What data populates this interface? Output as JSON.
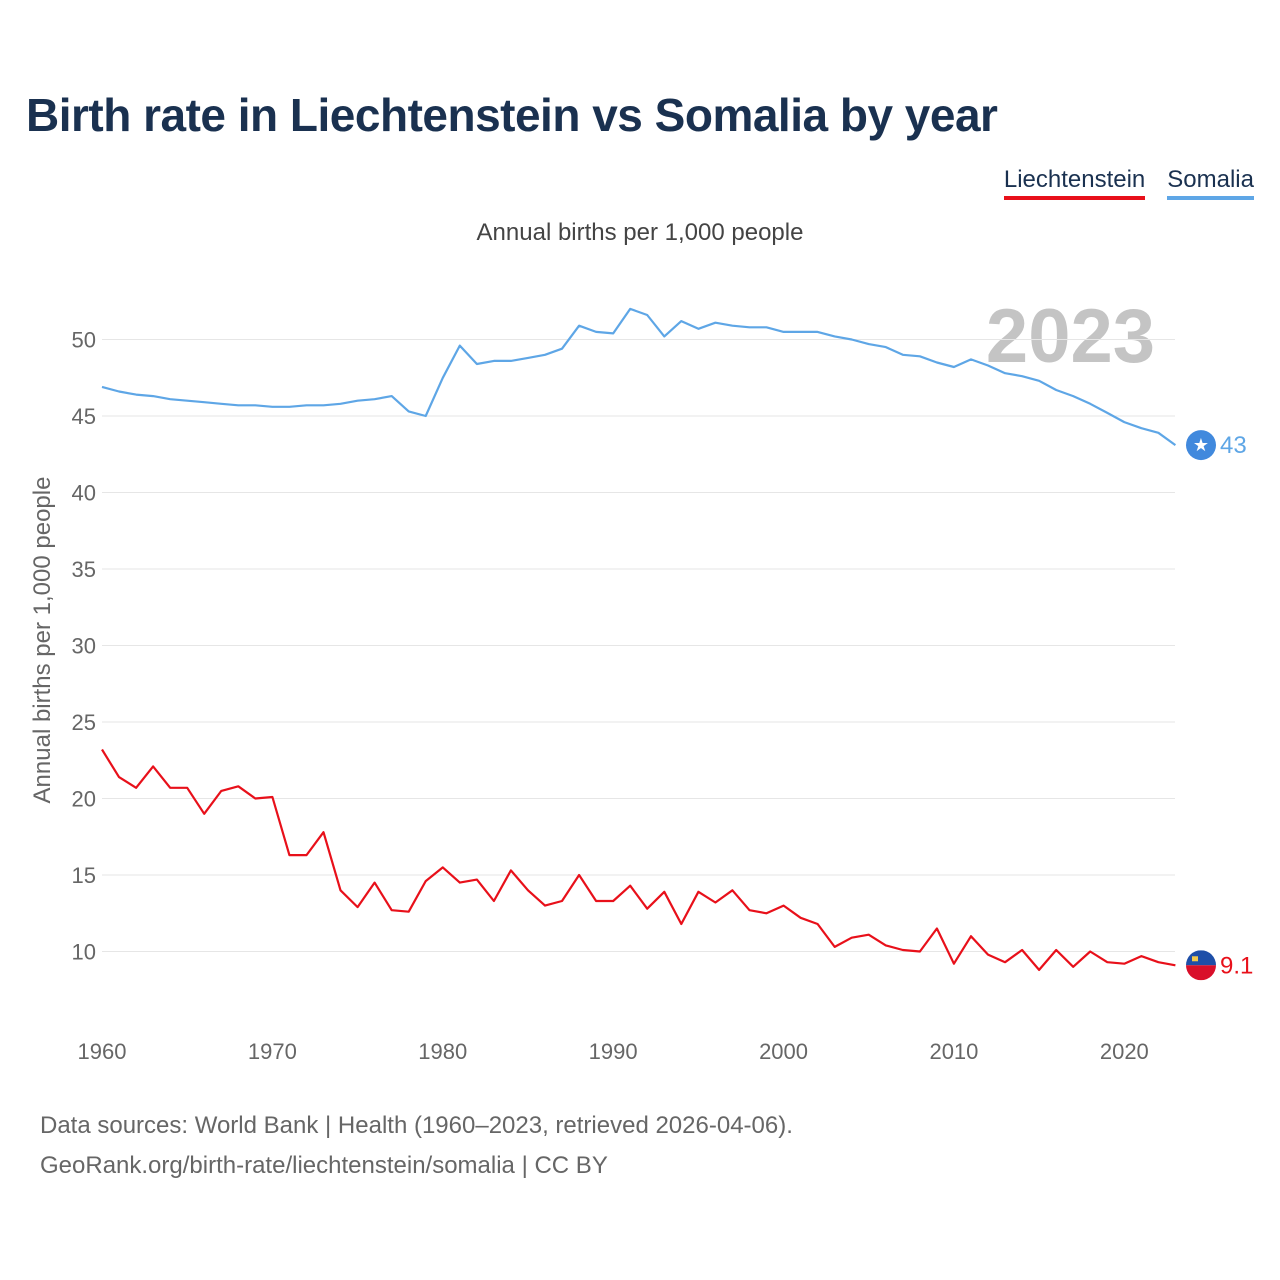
{
  "title": "Birth rate in Liechtenstein vs Somalia by year",
  "legend": {
    "liechtenstein": "Liechtenstein",
    "somalia": "Somalia"
  },
  "colors": {
    "liechtenstein": "#e8101a",
    "somalia": "#5ea6e6",
    "title": "#1a3150"
  },
  "footer": {
    "line1": "Data sources: World Bank | Health (1960–2023, retrieved 2026-04-06).",
    "line2": "GeoRank.org/birth-rate/liechtenstein/somalia | CC BY"
  },
  "chart_data": {
    "type": "line",
    "title": "Birth rate in Liechtenstein vs Somalia by year",
    "subtitle": "Annual births per 1,000 people",
    "ylabel": "Annual births per 1,000 people",
    "xlabel": "",
    "watermark_year": "2023",
    "xlim": [
      1960,
      2024.5
    ],
    "ylim": [
      5,
      55
    ],
    "x_ticks": [
      1960,
      1970,
      1980,
      1990,
      2000,
      2010,
      2020
    ],
    "y_ticks": [
      10,
      15,
      20,
      25,
      30,
      35,
      40,
      45,
      50
    ],
    "grid": true,
    "x": [
      1960,
      1961,
      1962,
      1963,
      1964,
      1965,
      1966,
      1967,
      1968,
      1969,
      1970,
      1971,
      1972,
      1973,
      1974,
      1975,
      1976,
      1977,
      1978,
      1979,
      1980,
      1981,
      1982,
      1983,
      1984,
      1985,
      1986,
      1987,
      1988,
      1989,
      1990,
      1991,
      1992,
      1993,
      1994,
      1995,
      1996,
      1997,
      1998,
      1999,
      2000,
      2001,
      2002,
      2003,
      2004,
      2005,
      2006,
      2007,
      2008,
      2009,
      2010,
      2011,
      2012,
      2013,
      2014,
      2015,
      2016,
      2017,
      2018,
      2019,
      2020,
      2021,
      2022,
      2023
    ],
    "series": [
      {
        "name": "Liechtenstein",
        "end_label": "9.1",
        "values": [
          23.2,
          21.4,
          20.7,
          22.1,
          20.7,
          20.7,
          19.0,
          20.5,
          20.8,
          20.0,
          20.1,
          16.3,
          16.3,
          17.8,
          14.0,
          12.9,
          14.5,
          12.7,
          12.6,
          14.6,
          15.5,
          14.5,
          14.7,
          13.3,
          15.3,
          14.0,
          13.0,
          13.3,
          15.0,
          13.3,
          13.3,
          14.3,
          12.8,
          13.9,
          11.8,
          13.9,
          13.2,
          14.0,
          12.7,
          12.5,
          13.0,
          12.2,
          11.8,
          10.3,
          10.9,
          11.1,
          10.4,
          10.1,
          10.0,
          11.5,
          9.2,
          11.0,
          9.8,
          9.3,
          10.1,
          8.8,
          10.1,
          9.0,
          10.0,
          9.3,
          9.2,
          9.7,
          9.3,
          9.1
        ]
      },
      {
        "name": "Somalia",
        "end_label": "43",
        "values": [
          46.9,
          46.6,
          46.4,
          46.3,
          46.1,
          46.0,
          45.9,
          45.8,
          45.7,
          45.7,
          45.6,
          45.6,
          45.7,
          45.7,
          45.8,
          46.0,
          46.1,
          46.3,
          45.3,
          45.0,
          47.5,
          49.6,
          48.4,
          48.6,
          48.6,
          48.8,
          49.0,
          49.4,
          50.9,
          50.5,
          50.4,
          52.0,
          51.6,
          50.2,
          51.2,
          50.7,
          51.1,
          50.9,
          50.8,
          50.8,
          50.5,
          50.5,
          50.5,
          50.2,
          50.0,
          49.7,
          49.5,
          49.0,
          48.9,
          48.5,
          48.2,
          48.7,
          48.3,
          47.8,
          47.6,
          47.3,
          46.7,
          46.3,
          45.8,
          45.2,
          44.6,
          44.2,
          43.9,
          43.1
        ]
      }
    ]
  }
}
